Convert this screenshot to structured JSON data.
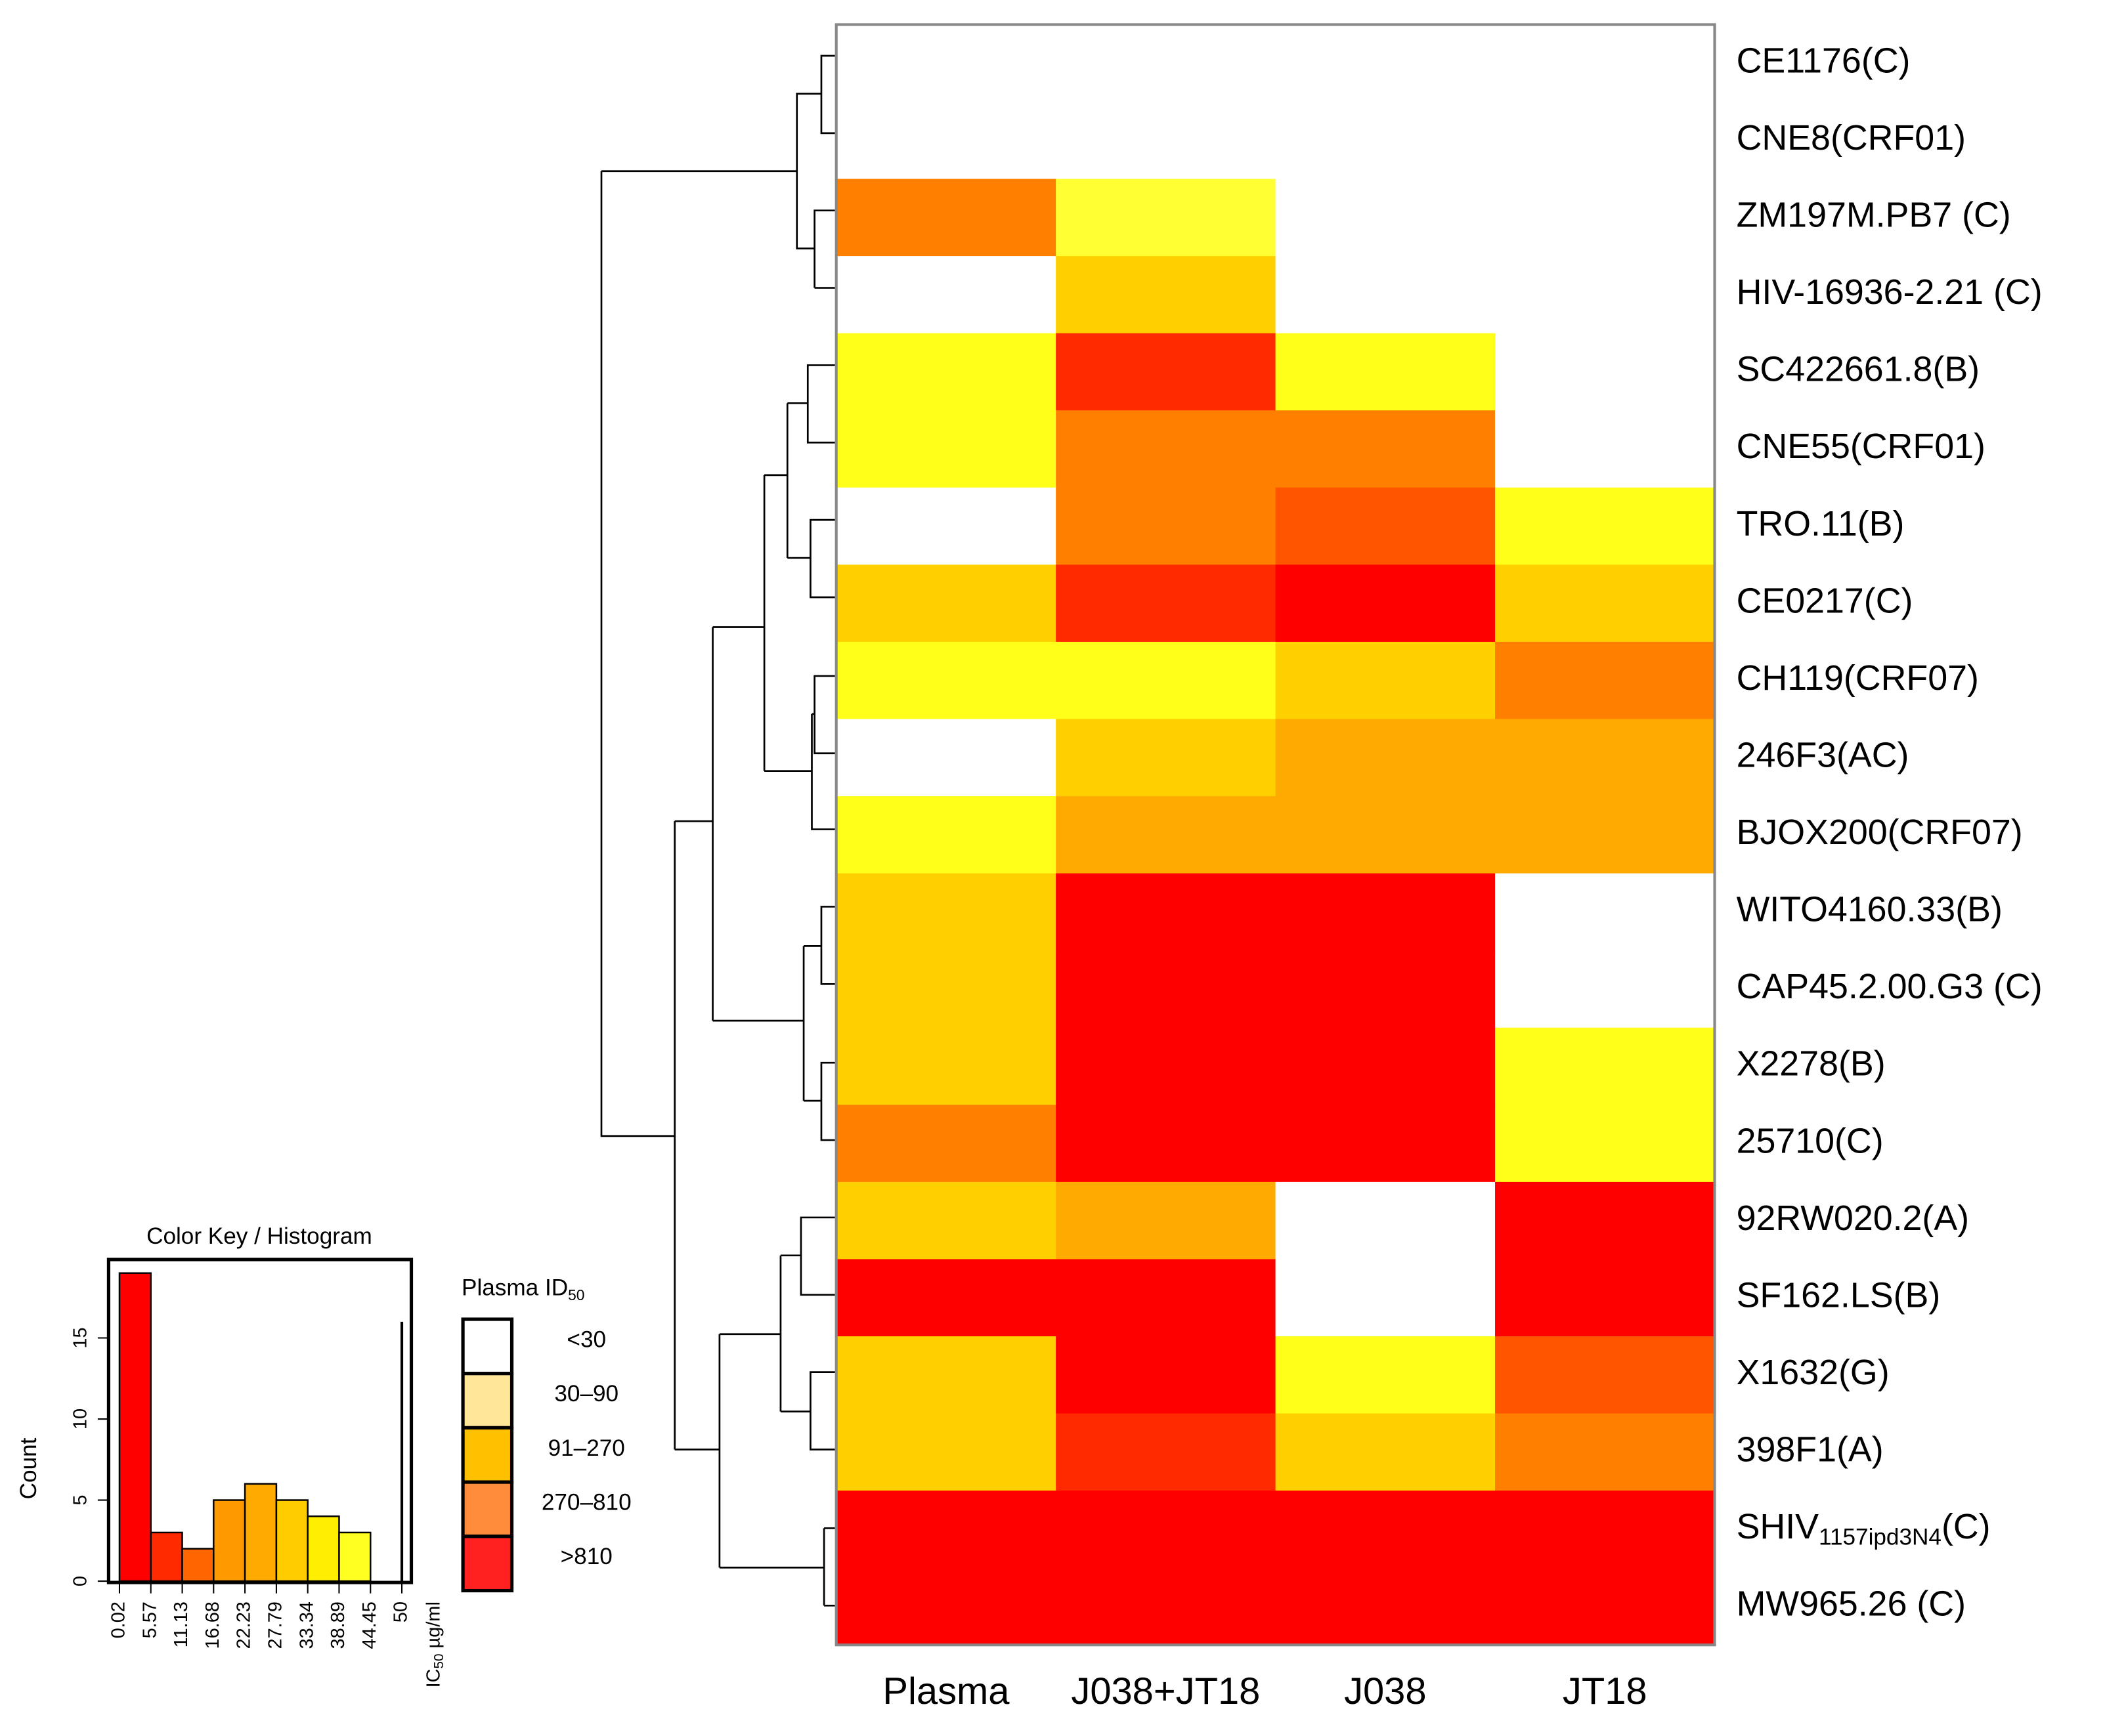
{
  "chart_data": [
    {
      "type": "heatmap",
      "rows": [
        "CE1176(C)",
        "CNE8(CRF01)",
        "ZM197M.PB7 (C)",
        "HIV-16936-2.21 (C)",
        "SC422661.8(B)",
        "CNE55(CRF01)",
        "TRO.11(B)",
        "CE0217(C)",
        "CH119(CRF07)",
        "246F3(AC)",
        "BJOX200(CRF07)",
        "WITO4160.33(B)",
        "CAP45.2.00.G3 (C)",
        "X2278(B)",
        "25710(C)",
        "92RW020.2(A)",
        "SF162.LS(B)",
        "X1632(G)",
        "398F1(A)",
        {
          "text": "SHIV",
          "sub": "1157ipd3N4",
          "after": "(C)"
        },
        "MW965.26 (C)"
      ],
      "columns": [
        "Plasma",
        "J038+JT18",
        "J038",
        "JT18"
      ],
      "cells": [
        [
          "#ffffff",
          "#ffffff",
          "#ffffff",
          "#ffffff"
        ],
        [
          "#ffffff",
          "#ffffff",
          "#ffffff",
          "#ffffff"
        ],
        [
          "#ff8000",
          "#ffff33",
          "#ffffff",
          "#ffffff"
        ],
        [
          "#ffffff",
          "#ffd000",
          "#ffffff",
          "#ffffff"
        ],
        [
          "#ffff1a",
          "#ff2a00",
          "#ffff1a",
          "#ffffff"
        ],
        [
          "#ffff1a",
          "#ff8000",
          "#ff8000",
          "#ffffff"
        ],
        [
          "#ffffff",
          "#ff8000",
          "#ff5500",
          "#ffff1a"
        ],
        [
          "#ffd000",
          "#ff2a00",
          "#ff0000",
          "#ffd000"
        ],
        [
          "#ffff1a",
          "#ffff1a",
          "#ffd000",
          "#ff8000"
        ],
        [
          "#ffffff",
          "#ffd000",
          "#ffaa00",
          "#ffaa00"
        ],
        [
          "#ffff1a",
          "#ffaa00",
          "#ffaa00",
          "#ffaa00"
        ],
        [
          "#ffd000",
          "#ff0000",
          "#ff0000",
          "#ffffff"
        ],
        [
          "#ffd000",
          "#ff0000",
          "#ff0000",
          "#ffffff"
        ],
        [
          "#ffd000",
          "#ff0000",
          "#ff0000",
          "#ffff1a"
        ],
        [
          "#ff8000",
          "#ff0000",
          "#ff0000",
          "#ffff1a"
        ],
        [
          "#ffd000",
          "#ffaa00",
          "#ffffff",
          "#ff0000"
        ],
        [
          "#ff0000",
          "#ff0000",
          "#ffffff",
          "#ff0000"
        ],
        [
          "#ffd000",
          "#ff0000",
          "#ffff1a",
          "#ff5500"
        ],
        [
          "#ffd000",
          "#ff2a00",
          "#ffd000",
          "#ff8000"
        ],
        [
          "#ff0000",
          "#ff0000",
          "#ff0000",
          "#ff0000"
        ],
        [
          "#ff0000",
          "#ff0000",
          "#ff0000",
          "#ff0000"
        ]
      ],
      "legend": {
        "title": "Plasma ID",
        "title_sub": "50",
        "labels": [
          "<30",
          "30–90",
          "91–270",
          "270–810",
          ">810"
        ],
        "colors": [
          "#ffffff",
          "#ffe699",
          "#ffc000",
          "#ff8c3a",
          "#ff2020"
        ]
      }
    },
    {
      "type": "histogram",
      "title": "Color Key / Histogram",
      "ylabel": "Count",
      "xlabel": "IC",
      "xlabel_sub": "50",
      "xlabel_unit": " µg/ml",
      "bins": [
        0.02,
        5.57,
        11.13,
        16.68,
        22.23,
        27.79,
        33.34,
        38.89,
        44.45,
        50
      ],
      "counts": [
        19,
        3,
        2,
        5,
        6,
        5,
        4,
        3,
        0
      ],
      "colors": [
        "#ff0000",
        "#ff2a00",
        "#ff6600",
        "#ff9900",
        "#ffaa00",
        "#ffcc00",
        "#ffee00",
        "#ffff22",
        "#ffff66"
      ],
      "trace": {
        "x": 50,
        "y": 16
      },
      "xlim": [
        0.02,
        50
      ],
      "ylim": [
        0,
        19
      ],
      "xticks": [
        0.02,
        5.57,
        11.13,
        16.68,
        22.23,
        27.79,
        33.34,
        38.89,
        44.45,
        50
      ],
      "yticks": [
        0,
        5,
        10,
        15
      ]
    }
  ]
}
